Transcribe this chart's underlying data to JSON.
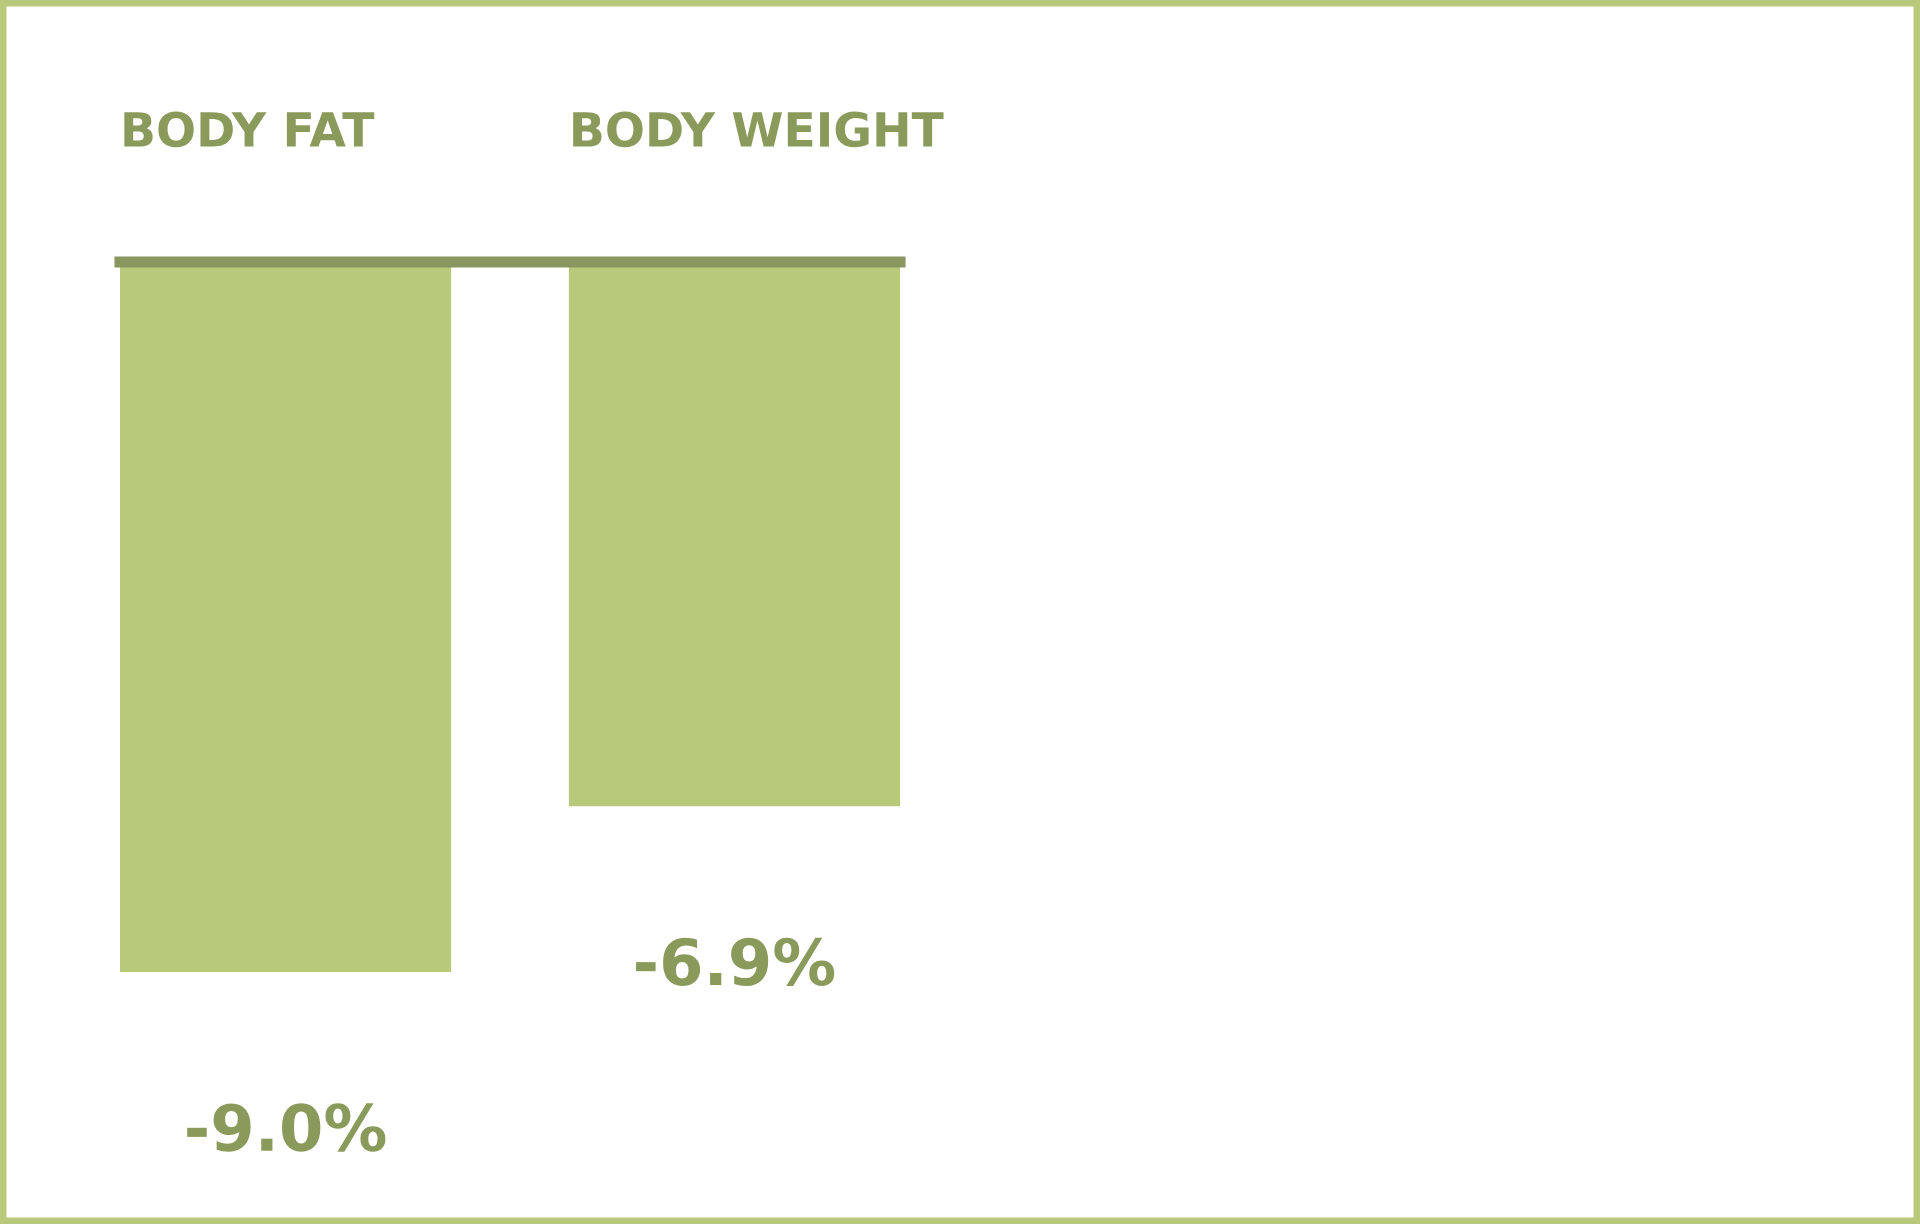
{
  "chart_data": {
    "type": "bar",
    "categories": [
      "BODY FAT",
      "BODY WEIGHT"
    ],
    "values": [
      -9.0,
      -6.9
    ],
    "color": "#b9c97b",
    "value_labels": [
      "-9.0%",
      "-6.9%"
    ],
    "grid": false,
    "legend": false
  }
}
